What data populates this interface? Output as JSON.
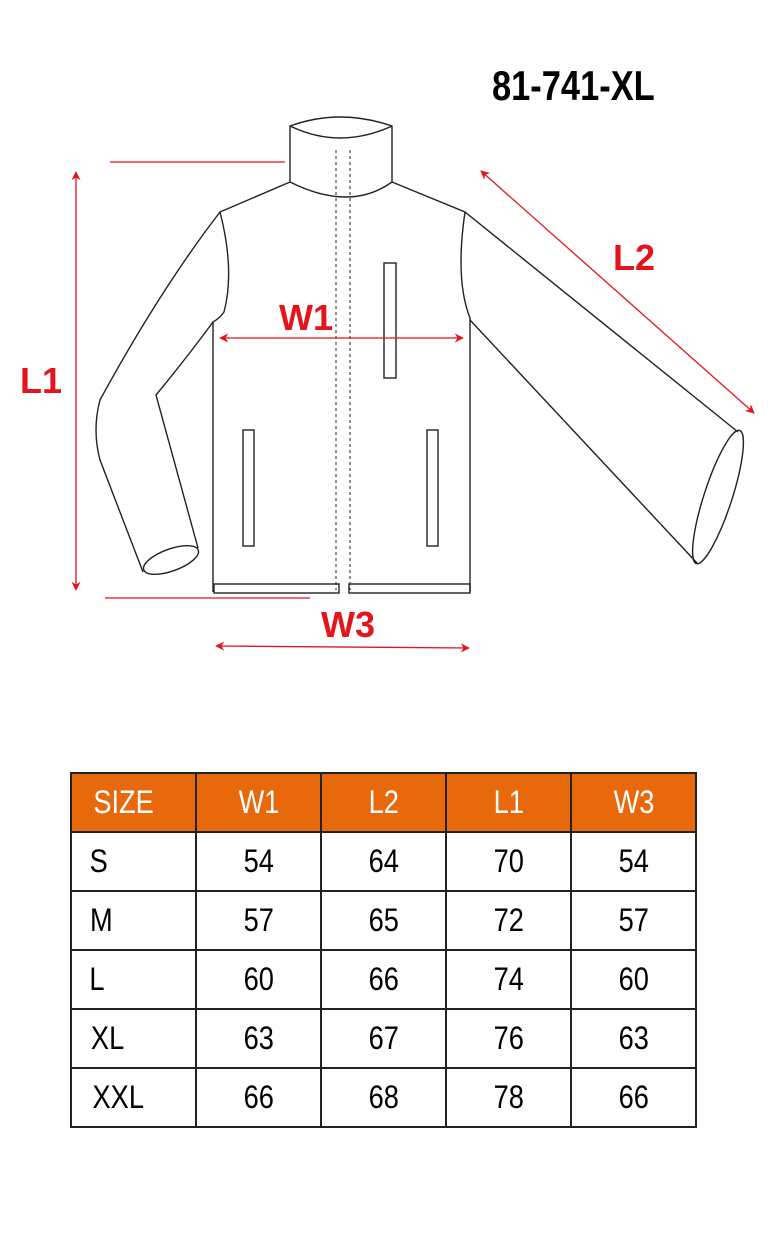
{
  "product_code": "81-741-XL",
  "diagram": {
    "labels": {
      "l1": "L1",
      "l2": "L2",
      "w1": "W1",
      "w3": "W3"
    },
    "colors": {
      "measure": "#e3141b",
      "outline": "#222222"
    }
  },
  "table": {
    "header_color": "#e8690b",
    "columns": [
      "SIZE",
      "W1",
      "L2",
      "L1",
      "W3"
    ],
    "rows": [
      [
        "S",
        "54",
        "64",
        "70",
        "54"
      ],
      [
        "M",
        "57",
        "65",
        "72",
        "57"
      ],
      [
        "L",
        "60",
        "66",
        "74",
        "60"
      ],
      [
        "XL",
        "63",
        "67",
        "76",
        "63"
      ],
      [
        "XXL",
        "66",
        "68",
        "78",
        "66"
      ]
    ]
  }
}
